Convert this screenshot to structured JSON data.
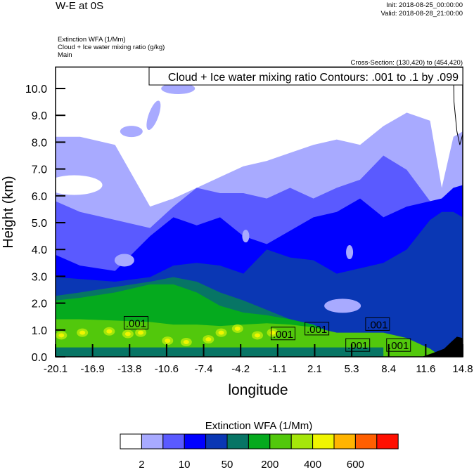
{
  "header": {
    "title": "W-E at 0S",
    "init": "Init: 2018-08-25_00:00:00",
    "valid": "Valid: 2018-08-28_21:00:00",
    "field1": "Extinction WFA   (1/Mm)",
    "field2": "Cloud + Ice water mixing ratio   (g/kg)",
    "field3": "Main",
    "cross_section": "Cross-Section: (130,420) to (454,420)"
  },
  "chart_data": {
    "type": "contour",
    "xlabel": "longitude",
    "ylabel": "Height (km)",
    "xlim": [
      -20.1,
      14.8
    ],
    "ylim": [
      0,
      10.8
    ],
    "xticks": [
      "-20.1",
      "-16.9",
      "-13.8",
      "-10.6",
      "-7.4",
      "-4.2",
      "-1.1",
      "2.1",
      "5.3",
      "8.4",
      "11.6",
      "14.8"
    ],
    "yticks": [
      "0.0",
      "1.0",
      "2.0",
      "3.0",
      "4.0",
      "5.0",
      "6.0",
      "7.0",
      "8.0",
      "9.0",
      "10.0"
    ],
    "contour_legend": "Cloud + Ice water mixing ratio Contours: .001 to .1 by .099",
    "contour_labels": [
      {
        "text": ".001",
        "lon": -13.2,
        "h": 1.27
      },
      {
        "text": ".001",
        "lon": -0.6,
        "h": 0.87
      },
      {
        "text": ".001",
        "lon": 2.3,
        "h": 1.05
      },
      {
        "text": ".001",
        "lon": 7.5,
        "h": 1.22
      },
      {
        "text": ".001",
        "lon": 5.8,
        "h": 0.44
      },
      {
        "text": ".001",
        "lon": 9.3,
        "h": 0.44
      }
    ],
    "sample_lon": [
      -20.1,
      -18,
      -15,
      -12,
      -10,
      -8,
      -6,
      -4,
      -2,
      0,
      2,
      4,
      6,
      8,
      10,
      12,
      13,
      14,
      14.8
    ],
    "filled_layers": [
      {
        "color": "#a8aaff",
        "top_km": [
          8.2,
          8.2,
          7.9,
          5.6,
          5.9,
          6.3,
          6.7,
          7.1,
          7.3,
          7.6,
          7.9,
          8.1,
          7.9,
          8.6,
          9.1,
          8.8,
          6.3,
          8.2,
          8.4
        ]
      },
      {
        "color": "#5a5aff",
        "top_km": [
          5.8,
          5.4,
          5.1,
          4.8,
          5.6,
          6.3,
          6.1,
          6.1,
          5.9,
          6.3,
          5.9,
          6.3,
          6.6,
          7.5,
          6.97,
          5.8,
          5.9,
          6.3,
          6.3
        ]
      },
      {
        "color": "#0000ff",
        "top_km": [
          3.8,
          3.4,
          3.2,
          4.5,
          5.2,
          4.9,
          5.2,
          4.5,
          4.2,
          4.7,
          5.2,
          5.4,
          5.9,
          5.2,
          5.6,
          5.8,
          5.9,
          6.3,
          6.4
        ]
      },
      {
        "color": "#0a37b4",
        "top_km": [
          2.97,
          2.9,
          2.8,
          2.97,
          3.4,
          3.5,
          3.4,
          3.1,
          4.0,
          3.7,
          3.6,
          3.1,
          3.3,
          3.5,
          4.0,
          5.1,
          5.4,
          5.4,
          5.2
        ]
      },
      {
        "color": "#077565",
        "top_km": [
          2.27,
          2.4,
          2.6,
          2.8,
          2.97,
          2.8,
          2.4,
          2.1,
          1.75,
          1.4,
          1.05,
          0.8,
          0.7,
          0.5,
          0.35,
          0.2,
          0.1,
          0.0,
          0.0
        ]
      },
      {
        "color": "#05aa1e",
        "top_km": [
          2.1,
          2.2,
          2.4,
          2.7,
          2.7,
          2.4,
          1.9,
          1.65,
          1.55,
          1.4,
          1.2,
          0.8,
          0.8,
          0.6,
          0.35,
          0.0,
          0.0,
          0.0,
          0.0
        ]
      },
      {
        "color": "#52c80c",
        "top_km": [
          1.4,
          1.4,
          1.35,
          1.3,
          1.2,
          1.2,
          1.15,
          1.2,
          1.25,
          1.2,
          1.1,
          0.9,
          0.9,
          0.9,
          0.7,
          0.3,
          0.0,
          0.0,
          0.0
        ]
      }
    ],
    "surface_layer": {
      "color": "#077565",
      "top_km": 0.35
    },
    "hotspots": {
      "color": "#f0f500",
      "lon": [
        -19.6,
        -17.8,
        -15.5,
        -13.9,
        -12.8,
        -10.5,
        -8.9,
        -7.0,
        -5.9,
        -4.5,
        -2.8,
        -1.5
      ],
      "h": [
        0.8,
        0.9,
        0.95,
        0.85,
        0.9,
        0.6,
        0.55,
        0.65,
        0.9,
        1.05,
        0.8,
        0.9
      ]
    },
    "terrain": {
      "color": "#000000",
      "lon": [
        11.3,
        12.3,
        13.2,
        13.8,
        14.3,
        14.8
      ],
      "h": [
        0.0,
        0.15,
        0.3,
        0.55,
        0.75,
        0.7
      ]
    },
    "colorbar": {
      "title": "Extinction WFA  (1/Mm)",
      "colors": [
        "#ffffff",
        "#a8aaff",
        "#5a5aff",
        "#0000ff",
        "#0a37b4",
        "#077565",
        "#05aa1e",
        "#52c80c",
        "#a5e60a",
        "#f0f500",
        "#ffb400",
        "#ff5f00",
        "#ff0f00"
      ],
      "labels": [
        "2",
        "10",
        "50",
        "200",
        "400",
        "600"
      ]
    }
  }
}
